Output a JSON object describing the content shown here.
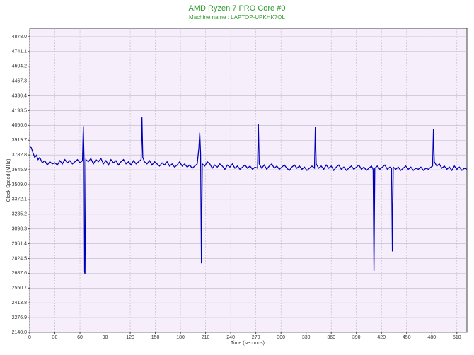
{
  "chart_data": {
    "type": "line",
    "title": "AMD Ryzen 7 PRO Core #0",
    "subtitle": "Machine name : LAPTOP-UPKHK7OL",
    "x_label": "Time (seconds)",
    "y_label": "Clock Speed (MHz)",
    "grid": true,
    "xlim": [
      0,
      522
    ],
    "ylim": [
      2140,
      4956
    ],
    "xticks": [
      0,
      30,
      60,
      90,
      120,
      150,
      180,
      210,
      240,
      270,
      300,
      330,
      360,
      390,
      420,
      450,
      480,
      510
    ],
    "yticks": [
      {
        "value": 2140,
        "label": "2140.0"
      },
      2276.9,
      2413.8,
      2550.7,
      2687.6,
      2824.5,
      2961.4,
      3098.3,
      3235.2,
      3372.1,
      {
        "value": 3509,
        "label": "3509.0"
      },
      3645.9,
      3782.8,
      3919.7,
      4056.6,
      4193.5,
      4330.4,
      4467.3,
      4604.2,
      4741.1,
      {
        "value": 4878,
        "label": "4878.0"
      }
    ],
    "x": [
      0,
      2,
      4,
      6,
      8,
      10,
      12,
      15,
      18,
      21,
      24,
      27,
      30,
      33,
      36,
      39,
      42,
      45,
      48,
      51,
      54,
      57,
      60,
      63,
      64,
      65,
      65.5,
      66,
      67,
      70,
      73,
      76,
      79,
      82,
      85,
      88,
      91,
      94,
      97,
      100,
      103,
      106,
      109,
      112,
      115,
      118,
      121,
      124,
      127,
      130,
      133,
      134,
      135,
      137,
      140,
      143,
      146,
      149,
      152,
      155,
      158,
      161,
      164,
      167,
      170,
      173,
      176,
      179,
      182,
      185,
      188,
      191,
      194,
      197,
      200,
      202,
      203,
      204,
      205,
      206,
      209,
      212,
      215,
      218,
      221,
      224,
      227,
      230,
      233,
      236,
      239,
      242,
      245,
      248,
      251,
      254,
      257,
      260,
      263,
      266,
      269,
      272,
      273,
      274,
      277,
      280,
      283,
      286,
      289,
      292,
      295,
      298,
      301,
      304,
      307,
      310,
      313,
      316,
      319,
      322,
      325,
      328,
      331,
      334,
      337,
      340,
      341,
      342,
      345,
      348,
      351,
      354,
      357,
      360,
      363,
      366,
      369,
      372,
      375,
      378,
      381,
      384,
      387,
      390,
      393,
      396,
      399,
      402,
      405,
      408,
      410,
      411,
      412,
      415,
      418,
      421,
      424,
      427,
      430,
      432,
      433,
      434,
      437,
      440,
      443,
      446,
      449,
      452,
      455,
      458,
      461,
      464,
      467,
      470,
      473,
      476,
      479,
      481,
      482,
      483,
      486,
      489,
      492,
      495,
      498,
      501,
      504,
      507,
      510,
      513,
      516,
      519,
      522
    ],
    "series": [
      {
        "name": "Core #0",
        "color": "#0000b4",
        "values": [
          3860,
          3850,
          3800,
          3760,
          3780,
          3740,
          3760,
          3710,
          3730,
          3690,
          3720,
          3700,
          3710,
          3690,
          3730,
          3700,
          3740,
          3710,
          3730,
          3700,
          3720,
          3740,
          3710,
          3730,
          4050,
          3700,
          2700,
          2680,
          3740,
          3720,
          3750,
          3700,
          3740,
          3720,
          3750,
          3700,
          3730,
          3690,
          3740,
          3710,
          3730,
          3690,
          3720,
          3740,
          3700,
          3720,
          3690,
          3730,
          3700,
          3720,
          3740,
          4130,
          3760,
          3720,
          3700,
          3730,
          3690,
          3720,
          3700,
          3680,
          3710,
          3690,
          3720,
          3680,
          3700,
          3670,
          3690,
          3720,
          3680,
          3700,
          3670,
          3690,
          3660,
          3680,
          3700,
          3850,
          3990,
          3800,
          2780,
          3700,
          3680,
          3720,
          3700,
          3660,
          3690,
          3670,
          3700,
          3680,
          3650,
          3690,
          3670,
          3700,
          3660,
          3680,
          3650,
          3670,
          3690,
          3660,
          3680,
          3650,
          3670,
          3660,
          4070,
          3700,
          3660,
          3690,
          3650,
          3680,
          3700,
          3660,
          3680,
          3650,
          3670,
          3690,
          3660,
          3640,
          3670,
          3690,
          3660,
          3680,
          3650,
          3670,
          3640,
          3660,
          3680,
          3660,
          4040,
          3700,
          3660,
          3680,
          3650,
          3690,
          3660,
          3680,
          3640,
          3670,
          3690,
          3650,
          3670,
          3640,
          3660,
          3680,
          3650,
          3670,
          3690,
          3650,
          3670,
          3640,
          3660,
          3680,
          3650,
          2710,
          3660,
          3680,
          3650,
          3670,
          3690,
          3650,
          3670,
          3660,
          2890,
          3670,
          3650,
          3670,
          3640,
          3660,
          3680,
          3650,
          3670,
          3640,
          3660,
          3650,
          3670,
          3640,
          3660,
          3650,
          3670,
          3680,
          4020,
          3720,
          3680,
          3700,
          3660,
          3680,
          3650,
          3670,
          3640,
          3680,
          3650,
          3670,
          3640,
          3660,
          3650
        ]
      }
    ]
  }
}
